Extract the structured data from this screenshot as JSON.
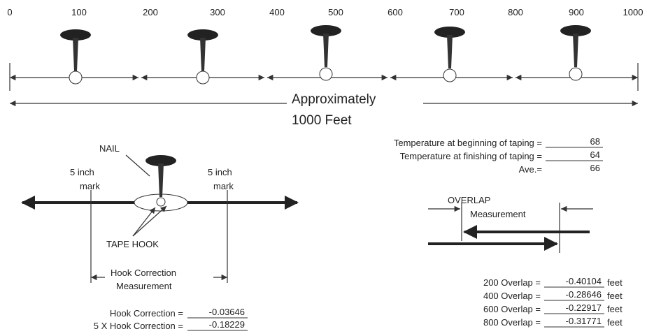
{
  "scale": {
    "ticks": [
      0,
      100,
      200,
      300,
      400,
      500,
      600,
      700,
      800,
      900,
      1000
    ]
  },
  "span_label": [
    "Approximately",
    "1000 Feet"
  ],
  "temperatures": [
    {
      "label": "Temperature at beginning of taping =",
      "value": 68
    },
    {
      "label": "Temperature at finishing of taping =",
      "value": 64
    },
    {
      "label": "Ave.=",
      "value": 66
    }
  ],
  "hook_detail": {
    "nail": "NAIL",
    "left_mark": [
      "5 inch",
      "mark"
    ],
    "right_mark": [
      "5 inch",
      "mark"
    ],
    "tape_hook": "TAPE HOOK",
    "measurement": [
      "Hook Correction",
      "Measurement"
    ]
  },
  "hook_corrections": [
    {
      "label": "Hook Correction =",
      "value": -0.03646
    },
    {
      "label": "5 X Hook Correction =",
      "value": -0.18229
    }
  ],
  "overlap_detail": {
    "title": [
      "OVERLAP",
      "Measurement"
    ]
  },
  "overlaps": [
    {
      "label": "200 Overlap =",
      "value": -0.40104,
      "unit": "feet"
    },
    {
      "label": "400 Overlap =",
      "value": -0.28646,
      "unit": "feet"
    },
    {
      "label": "600 Overlap =",
      "value": -0.22917,
      "unit": "feet"
    },
    {
      "label": "800 Overlap =",
      "value": -0.31771,
      "unit": "feet"
    }
  ]
}
